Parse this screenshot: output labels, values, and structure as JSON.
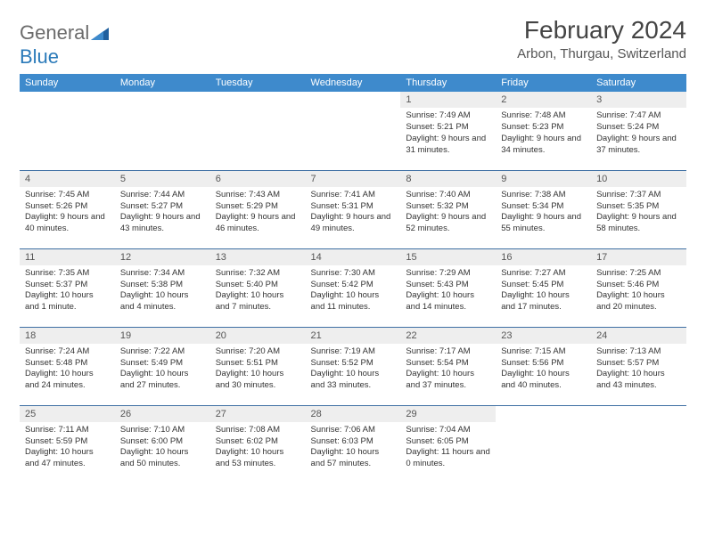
{
  "brand": {
    "word1": "General",
    "word2": "Blue"
  },
  "title": "February 2024",
  "location": "Arbon, Thurgau, Switzerland",
  "colors": {
    "header_bg": "#3e8acc",
    "header_fg": "#ffffff",
    "daynum_bg": "#eeeeee",
    "rule": "#3e6fa3",
    "logo_gray": "#6b6b6b",
    "logo_blue": "#2a7ab9"
  },
  "weekdays": [
    "Sunday",
    "Monday",
    "Tuesday",
    "Wednesday",
    "Thursday",
    "Friday",
    "Saturday"
  ],
  "weeks": [
    [
      null,
      null,
      null,
      null,
      {
        "n": "1",
        "sr": "Sunrise: 7:49 AM",
        "ss": "Sunset: 5:21 PM",
        "dl": "Daylight: 9 hours and 31 minutes."
      },
      {
        "n": "2",
        "sr": "Sunrise: 7:48 AM",
        "ss": "Sunset: 5:23 PM",
        "dl": "Daylight: 9 hours and 34 minutes."
      },
      {
        "n": "3",
        "sr": "Sunrise: 7:47 AM",
        "ss": "Sunset: 5:24 PM",
        "dl": "Daylight: 9 hours and 37 minutes."
      }
    ],
    [
      {
        "n": "4",
        "sr": "Sunrise: 7:45 AM",
        "ss": "Sunset: 5:26 PM",
        "dl": "Daylight: 9 hours and 40 minutes."
      },
      {
        "n": "5",
        "sr": "Sunrise: 7:44 AM",
        "ss": "Sunset: 5:27 PM",
        "dl": "Daylight: 9 hours and 43 minutes."
      },
      {
        "n": "6",
        "sr": "Sunrise: 7:43 AM",
        "ss": "Sunset: 5:29 PM",
        "dl": "Daylight: 9 hours and 46 minutes."
      },
      {
        "n": "7",
        "sr": "Sunrise: 7:41 AM",
        "ss": "Sunset: 5:31 PM",
        "dl": "Daylight: 9 hours and 49 minutes."
      },
      {
        "n": "8",
        "sr": "Sunrise: 7:40 AM",
        "ss": "Sunset: 5:32 PM",
        "dl": "Daylight: 9 hours and 52 minutes."
      },
      {
        "n": "9",
        "sr": "Sunrise: 7:38 AM",
        "ss": "Sunset: 5:34 PM",
        "dl": "Daylight: 9 hours and 55 minutes."
      },
      {
        "n": "10",
        "sr": "Sunrise: 7:37 AM",
        "ss": "Sunset: 5:35 PM",
        "dl": "Daylight: 9 hours and 58 minutes."
      }
    ],
    [
      {
        "n": "11",
        "sr": "Sunrise: 7:35 AM",
        "ss": "Sunset: 5:37 PM",
        "dl": "Daylight: 10 hours and 1 minute."
      },
      {
        "n": "12",
        "sr": "Sunrise: 7:34 AM",
        "ss": "Sunset: 5:38 PM",
        "dl": "Daylight: 10 hours and 4 minutes."
      },
      {
        "n": "13",
        "sr": "Sunrise: 7:32 AM",
        "ss": "Sunset: 5:40 PM",
        "dl": "Daylight: 10 hours and 7 minutes."
      },
      {
        "n": "14",
        "sr": "Sunrise: 7:30 AM",
        "ss": "Sunset: 5:42 PM",
        "dl": "Daylight: 10 hours and 11 minutes."
      },
      {
        "n": "15",
        "sr": "Sunrise: 7:29 AM",
        "ss": "Sunset: 5:43 PM",
        "dl": "Daylight: 10 hours and 14 minutes."
      },
      {
        "n": "16",
        "sr": "Sunrise: 7:27 AM",
        "ss": "Sunset: 5:45 PM",
        "dl": "Daylight: 10 hours and 17 minutes."
      },
      {
        "n": "17",
        "sr": "Sunrise: 7:25 AM",
        "ss": "Sunset: 5:46 PM",
        "dl": "Daylight: 10 hours and 20 minutes."
      }
    ],
    [
      {
        "n": "18",
        "sr": "Sunrise: 7:24 AM",
        "ss": "Sunset: 5:48 PM",
        "dl": "Daylight: 10 hours and 24 minutes."
      },
      {
        "n": "19",
        "sr": "Sunrise: 7:22 AM",
        "ss": "Sunset: 5:49 PM",
        "dl": "Daylight: 10 hours and 27 minutes."
      },
      {
        "n": "20",
        "sr": "Sunrise: 7:20 AM",
        "ss": "Sunset: 5:51 PM",
        "dl": "Daylight: 10 hours and 30 minutes."
      },
      {
        "n": "21",
        "sr": "Sunrise: 7:19 AM",
        "ss": "Sunset: 5:52 PM",
        "dl": "Daylight: 10 hours and 33 minutes."
      },
      {
        "n": "22",
        "sr": "Sunrise: 7:17 AM",
        "ss": "Sunset: 5:54 PM",
        "dl": "Daylight: 10 hours and 37 minutes."
      },
      {
        "n": "23",
        "sr": "Sunrise: 7:15 AM",
        "ss": "Sunset: 5:56 PM",
        "dl": "Daylight: 10 hours and 40 minutes."
      },
      {
        "n": "24",
        "sr": "Sunrise: 7:13 AM",
        "ss": "Sunset: 5:57 PM",
        "dl": "Daylight: 10 hours and 43 minutes."
      }
    ],
    [
      {
        "n": "25",
        "sr": "Sunrise: 7:11 AM",
        "ss": "Sunset: 5:59 PM",
        "dl": "Daylight: 10 hours and 47 minutes."
      },
      {
        "n": "26",
        "sr": "Sunrise: 7:10 AM",
        "ss": "Sunset: 6:00 PM",
        "dl": "Daylight: 10 hours and 50 minutes."
      },
      {
        "n": "27",
        "sr": "Sunrise: 7:08 AM",
        "ss": "Sunset: 6:02 PM",
        "dl": "Daylight: 10 hours and 53 minutes."
      },
      {
        "n": "28",
        "sr": "Sunrise: 7:06 AM",
        "ss": "Sunset: 6:03 PM",
        "dl": "Daylight: 10 hours and 57 minutes."
      },
      {
        "n": "29",
        "sr": "Sunrise: 7:04 AM",
        "ss": "Sunset: 6:05 PM",
        "dl": "Daylight: 11 hours and 0 minutes."
      },
      null,
      null
    ]
  ]
}
